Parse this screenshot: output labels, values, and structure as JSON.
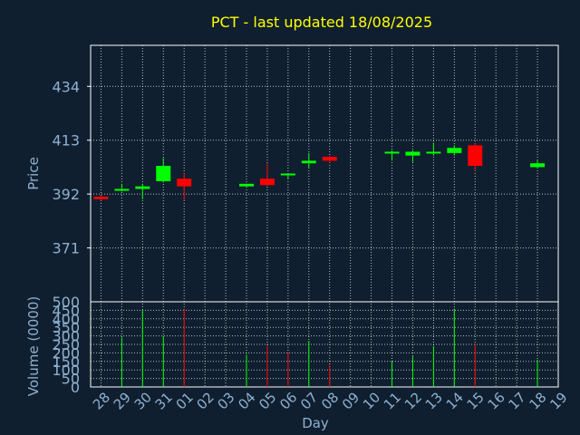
{
  "colors": {
    "background": "#0f1f2f",
    "axis": "#ffffff",
    "grid": "#ffffff",
    "title": "#ffff00",
    "label": "#8fb0d0",
    "up": "#00ff00",
    "down": "#ff0000"
  },
  "chart_data": [
    {
      "type": "candlestick",
      "title": "PCT - last updated 18/08/2025",
      "ylabel": "Price",
      "xlabel": "",
      "ylim": [
        350,
        450
      ],
      "yticks": [
        371,
        392,
        413,
        434
      ],
      "grid": true,
      "x_ticks": [
        "28",
        "29",
        "30",
        "31",
        "01",
        "02",
        "03",
        "04",
        "05",
        "06",
        "07",
        "08",
        "09",
        "10",
        "11",
        "12",
        "13",
        "14",
        "15",
        "16",
        "17",
        "18",
        "19"
      ],
      "candles": [
        {
          "day": "28",
          "open": 391,
          "high": 391.5,
          "low": 389.5,
          "close": 390
        },
        {
          "day": "29",
          "open": 393.5,
          "high": 396,
          "low": 393,
          "close": 394
        },
        {
          "day": "30",
          "open": 394,
          "high": 396,
          "low": 390,
          "close": 395
        },
        {
          "day": "31",
          "open": 397,
          "high": 406,
          "low": 396.5,
          "close": 403
        },
        {
          "day": "01",
          "open": 398,
          "high": 400,
          "low": 389.5,
          "close": 395
        },
        {
          "day": "04",
          "open": 395,
          "high": 396,
          "low": 395,
          "close": 396
        },
        {
          "day": "05",
          "open": 398,
          "high": 404,
          "low": 395,
          "close": 395.5
        },
        {
          "day": "06",
          "open": 400,
          "high": 400,
          "low": 398,
          "close": 400
        },
        {
          "day": "07",
          "open": 404,
          "high": 408,
          "low": 402,
          "close": 405
        },
        {
          "day": "08",
          "open": 406.5,
          "high": 407,
          "low": 404,
          "close": 405
        },
        {
          "day": "11",
          "open": 408,
          "high": 409,
          "low": 405,
          "close": 408.5
        },
        {
          "day": "12",
          "open": 407,
          "high": 409,
          "low": 404.5,
          "close": 408.5
        },
        {
          "day": "13",
          "open": 408,
          "high": 412,
          "low": 407,
          "close": 408.5
        },
        {
          "day": "14",
          "open": 408,
          "high": 411,
          "low": 407,
          "close": 410
        },
        {
          "day": "15",
          "open": 411,
          "high": 412,
          "low": 401,
          "close": 403
        },
        {
          "day": "18",
          "open": 402.5,
          "high": 405.5,
          "low": 402,
          "close": 404
        }
      ]
    },
    {
      "type": "bar",
      "ylabel": "Volume (0000)",
      "xlabel": "Day",
      "ylim": [
        0,
        500
      ],
      "yticks": [
        0,
        50,
        100,
        150,
        200,
        250,
        300,
        350,
        400,
        450,
        500
      ],
      "grid": true,
      "x_ticks": [
        "28",
        "29",
        "30",
        "31",
        "01",
        "02",
        "03",
        "04",
        "05",
        "06",
        "07",
        "08",
        "09",
        "10",
        "11",
        "12",
        "13",
        "14",
        "15",
        "16",
        "17",
        "18",
        "19"
      ],
      "bars": [
        {
          "day": "29",
          "value": 290,
          "direction": "up"
        },
        {
          "day": "30",
          "value": 450,
          "direction": "up"
        },
        {
          "day": "31",
          "value": 300,
          "direction": "up"
        },
        {
          "day": "01",
          "value": 460,
          "direction": "down"
        },
        {
          "day": "04",
          "value": 190,
          "direction": "up"
        },
        {
          "day": "05",
          "value": 240,
          "direction": "down"
        },
        {
          "day": "06",
          "value": 200,
          "direction": "down"
        },
        {
          "day": "07",
          "value": 270,
          "direction": "up"
        },
        {
          "day": "08",
          "value": 130,
          "direction": "down"
        },
        {
          "day": "11",
          "value": 150,
          "direction": "up"
        },
        {
          "day": "12",
          "value": 180,
          "direction": "up"
        },
        {
          "day": "13",
          "value": 240,
          "direction": "up"
        },
        {
          "day": "14",
          "value": 460,
          "direction": "up"
        },
        {
          "day": "15",
          "value": 250,
          "direction": "down"
        },
        {
          "day": "18",
          "value": 160,
          "direction": "up"
        }
      ]
    }
  ]
}
